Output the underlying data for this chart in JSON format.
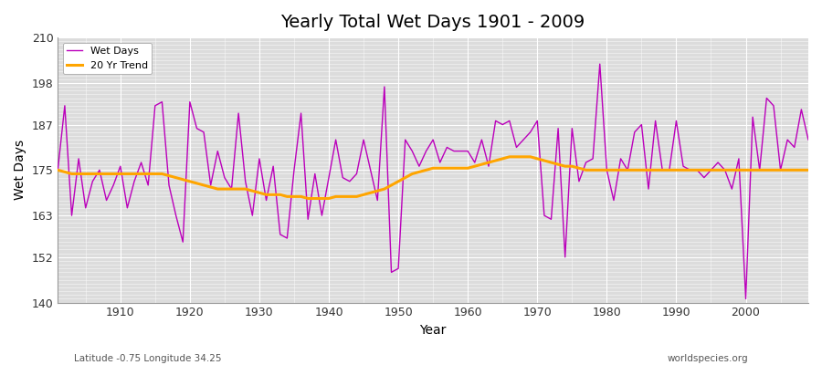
{
  "title": "Yearly Total Wet Days 1901 - 2009",
  "xlabel": "Year",
  "ylabel": "Wet Days",
  "lat_lon_label": "Latitude -0.75 Longitude 34.25",
  "watermark": "worldspecies.org",
  "ylim": [
    140,
    210
  ],
  "yticks": [
    140,
    152,
    163,
    175,
    187,
    198,
    210
  ],
  "bg_color": "#dcdcdc",
  "wet_days_color": "#bb00bb",
  "trend_color": "#ffa500",
  "years": [
    1901,
    1902,
    1903,
    1904,
    1905,
    1906,
    1907,
    1908,
    1909,
    1910,
    1911,
    1912,
    1913,
    1914,
    1915,
    1916,
    1917,
    1918,
    1919,
    1920,
    1921,
    1922,
    1923,
    1924,
    1925,
    1926,
    1927,
    1928,
    1929,
    1930,
    1931,
    1932,
    1933,
    1934,
    1935,
    1936,
    1937,
    1938,
    1939,
    1940,
    1941,
    1942,
    1943,
    1944,
    1945,
    1946,
    1947,
    1948,
    1949,
    1950,
    1951,
    1952,
    1953,
    1954,
    1955,
    1956,
    1957,
    1958,
    1959,
    1960,
    1961,
    1962,
    1963,
    1964,
    1965,
    1966,
    1967,
    1968,
    1969,
    1970,
    1971,
    1972,
    1973,
    1974,
    1975,
    1976,
    1977,
    1978,
    1979,
    1980,
    1981,
    1982,
    1983,
    1984,
    1985,
    1986,
    1987,
    1988,
    1989,
    1990,
    1991,
    1992,
    1993,
    1994,
    1995,
    1996,
    1997,
    1998,
    1999,
    2000,
    2001,
    2002,
    2003,
    2004,
    2005,
    2006,
    2007,
    2008,
    2009
  ],
  "wet_days": [
    175,
    192,
    163,
    178,
    165,
    172,
    175,
    167,
    171,
    176,
    165,
    172,
    177,
    171,
    192,
    193,
    171,
    163,
    156,
    193,
    186,
    185,
    171,
    180,
    173,
    170,
    190,
    172,
    163,
    178,
    167,
    176,
    158,
    157,
    175,
    190,
    162,
    174,
    163,
    173,
    183,
    173,
    172,
    174,
    183,
    175,
    167,
    197,
    148,
    149,
    183,
    180,
    176,
    180,
    183,
    177,
    181,
    180,
    180,
    180,
    177,
    183,
    176,
    188,
    187,
    188,
    181,
    183,
    185,
    188,
    163,
    162,
    186,
    152,
    186,
    172,
    177,
    178,
    203,
    175,
    167,
    178,
    175,
    185,
    187,
    170,
    188,
    175,
    175,
    188,
    176,
    175,
    175,
    173,
    175,
    177,
    175,
    170,
    178,
    141,
    189,
    175,
    194,
    192,
    175,
    183,
    181,
    191,
    183
  ],
  "trend": [
    175,
    174.5,
    174,
    174,
    174,
    174,
    174,
    174,
    174,
    174,
    174,
    174,
    174,
    174,
    174,
    174,
    173.5,
    173,
    172.5,
    172,
    171.5,
    171,
    170.5,
    170,
    170,
    170,
    170,
    170,
    169.5,
    169,
    168.5,
    168.5,
    168.5,
    168,
    168,
    168,
    167.5,
    167.5,
    167.5,
    167.5,
    168,
    168,
    168,
    168,
    168.5,
    169,
    169.5,
    170,
    171,
    172,
    173,
    174,
    174.5,
    175,
    175.5,
    175.5,
    175.5,
    175.5,
    175.5,
    175.5,
    176,
    176.5,
    177,
    177.5,
    178,
    178.5,
    178.5,
    178.5,
    178.5,
    178,
    177.5,
    177,
    176.5,
    176,
    176,
    175.5,
    175,
    175,
    175,
    175,
    175,
    175,
    175,
    175,
    175,
    175,
    175,
    175,
    175,
    175,
    175,
    175,
    175,
    175,
    175,
    175,
    175,
    175,
    175,
    175,
    175,
    175,
    175,
    175,
    175,
    175,
    175,
    175,
    175
  ]
}
